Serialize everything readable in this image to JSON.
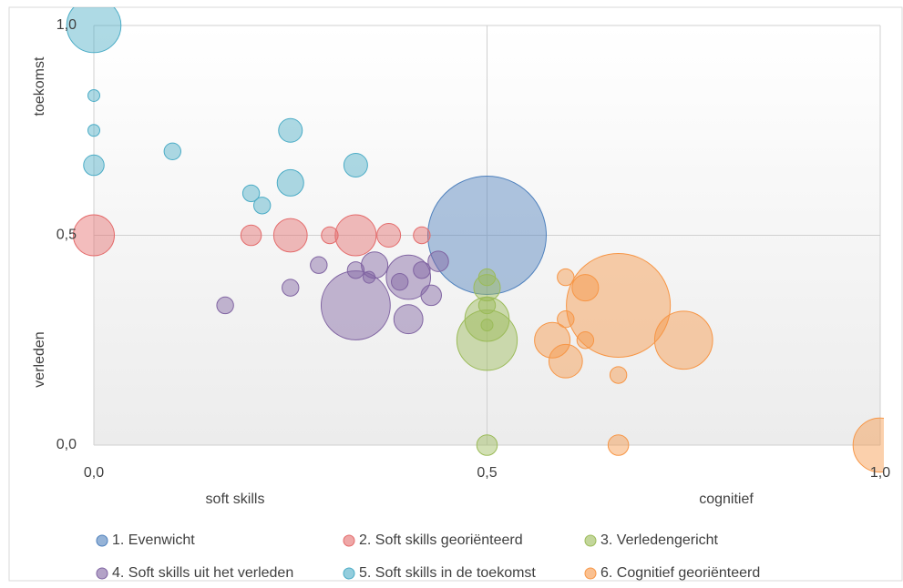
{
  "chart_data": {
    "type": "bubble",
    "x_label_left": "soft skills",
    "x_label_right": "cognitief",
    "y_label_top": "toekomst",
    "y_label_bottom": "verleden",
    "xlim": [
      0,
      1
    ],
    "ylim": [
      0,
      1
    ],
    "xticks": [
      {
        "value": 0,
        "label": "0,0"
      },
      {
        "value": 0.5,
        "label": "0,5"
      },
      {
        "value": 1,
        "label": "1,0"
      }
    ],
    "yticks": [
      {
        "value": 0,
        "label": "0,0"
      },
      {
        "value": 0.5,
        "label": "0,5"
      },
      {
        "value": 1,
        "label": "1,0"
      }
    ],
    "grid": true,
    "series": [
      {
        "name": "1. Evenwicht",
        "color": "#4f81bd",
        "x": [
          0.5
        ],
        "y": [
          0.5
        ],
        "size": [
          100
        ]
      },
      {
        "name": "2. Soft skills georiënteerd",
        "color": "#e46c6c",
        "x": [
          0,
          0.2,
          0.25,
          0.3,
          0.333,
          0.375,
          0.417
        ],
        "y": [
          0.5,
          0.5,
          0.5,
          0.5,
          0.5,
          0.5,
          0.5
        ],
        "size": [
          12,
          3,
          8,
          2,
          12,
          4,
          2
        ]
      },
      {
        "name": "3. Verledengericht",
        "color": "#9bbb59",
        "x": [
          0.5,
          0.5,
          0.5,
          0.5,
          0.5,
          0.5,
          0.5
        ],
        "y": [
          0.25,
          0.3,
          0.375,
          0.4,
          0.333,
          0.286,
          0
        ],
        "size": [
          26,
          14,
          5,
          2,
          2,
          1,
          3
        ]
      },
      {
        "name": "4. Soft skills uit het verleden",
        "color": "#8064a2",
        "x": [
          0.167,
          0.25,
          0.286,
          0.333,
          0.333,
          0.357,
          0.35,
          0.389,
          0.4,
          0.4,
          0.417,
          0.429,
          0.438
        ],
        "y": [
          0.333,
          0.375,
          0.429,
          0.333,
          0.417,
          0.429,
          0.4,
          0.389,
          0.4,
          0.3,
          0.417,
          0.357,
          0.438
        ],
        "size": [
          2,
          2,
          2,
          34,
          2,
          5,
          1,
          2,
          14,
          6,
          2,
          3,
          3
        ]
      },
      {
        "name": "5. Soft skills in de toekomst",
        "color": "#4bacc6",
        "x": [
          0,
          0,
          0,
          0,
          0.1,
          0.2,
          0.214,
          0.25,
          0.25,
          0.333
        ],
        "y": [
          1,
          0.833,
          0.75,
          0.667,
          0.7,
          0.6,
          0.571,
          0.75,
          0.625,
          0.667
        ],
        "size": [
          21,
          1,
          1,
          3,
          2,
          2,
          2,
          4,
          5,
          4
        ]
      },
      {
        "name": "6. Cognitief georiënteerd",
        "color": "#f79646",
        "x": [
          0.667,
          0.6,
          0.625,
          0.6,
          0.583,
          0.625,
          0.6,
          0.75,
          0.667,
          0.667,
          1
        ],
        "y": [
          0.333,
          0.4,
          0.375,
          0.3,
          0.25,
          0.25,
          0.2,
          0.25,
          0.167,
          0,
          0
        ],
        "size": [
          77,
          2,
          5,
          2,
          9,
          2,
          8,
          24,
          2,
          3,
          21
        ]
      }
    ]
  }
}
